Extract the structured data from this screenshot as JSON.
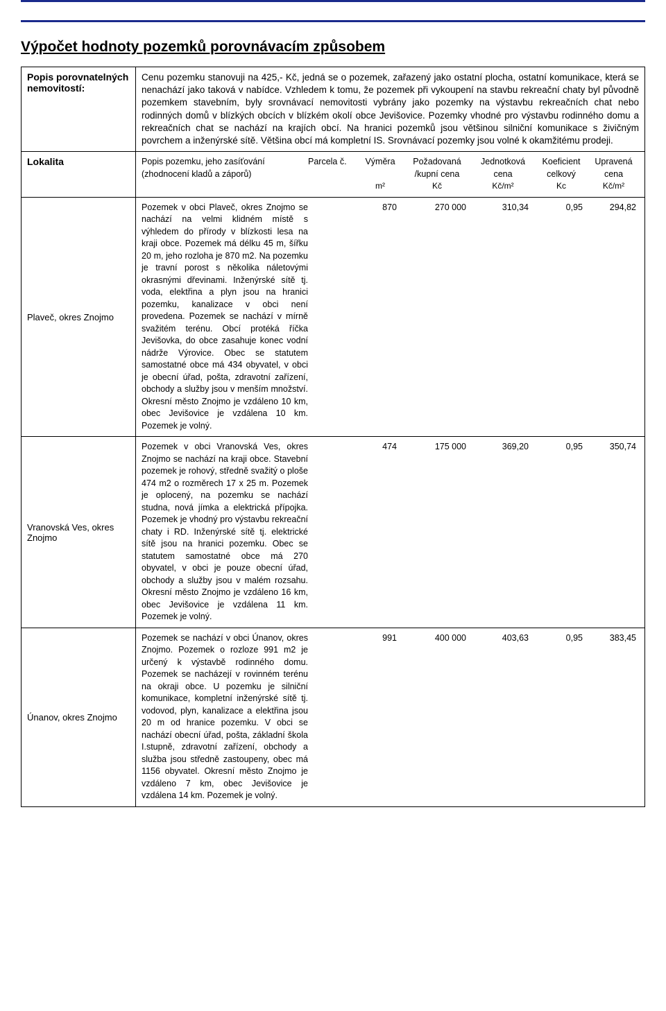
{
  "colors": {
    "border_navy": "#1a2a8c",
    "text": "#000000",
    "background": "#ffffff"
  },
  "page_title": "Výpočet hodnoty pozemků porovnávacím způsobem",
  "section1": {
    "label": "Popis porovnatelných nemovitostí:",
    "text": "Cenu pozemku stanovuji na 425,- Kč, jedná se o pozemek, zařazený jako ostatní plocha, ostatní komunikace, která se nenachází jako taková v nabídce. Vzhledem k tomu, že pozemek při vykoupení na stavbu rekreační chaty byl původně pozemkem stavebním, byly srovnávací nemovitosti vybrány jako pozemky na výstavbu rekreačních chat nebo rodinných domů v blízkých obcích v blízkém okolí obce Jevišovice. Pozemky  vhodné pro výstavbu rodinného domu a rekreačních chat se nachází na krajích obcí. Na hranici pozemků jsou většinou silniční komunikace s živičným povrchem a inženýrské sítě. Většina obcí má kompletní IS. Srovnávací pozemky jsou volné k okamžitému prodeji."
  },
  "section2": {
    "label": "Lokalita",
    "header": {
      "c1_l1": "Popis pozemku, jeho zasíťování",
      "c1_l2": "(zhodnocení  kladů a záporů)",
      "c2_l1": "Parcela č.",
      "c3_l1": "Výměra",
      "c3_l2": "m²",
      "c4_l1": "Požadovaná",
      "c4_l2": "/kupní cena",
      "c4_l3": "Kč",
      "c5_l1": "Jednotková",
      "c5_l2": "cena",
      "c5_l3": "Kč/m²",
      "c6_l1": "Koeficient",
      "c6_l2": "celkový",
      "c6_l3": "Kᴄ",
      "c7_l1": "Upravená",
      "c7_l2": "cena",
      "c7_l3": "Kč/m²"
    }
  },
  "rows": [
    {
      "locality": "Plaveč, okres Znojmo",
      "desc": "Pozemek v obci Plaveč, okres Znojmo se nachází na velmi klidném místě s výhledem do přírody v blízkosti lesa na kraji obce. Pozemek má délku 45 m, šířku 20 m, jeho rozloha je 870 m2. Na pozemku je travní porost s několika náletovými okrasnými dřevinami. Inženýrské sítě tj. voda, elektřina a plyn jsou na hranici pozemku, kanalizace v obci není provedena. Pozemek se nachází v mírně svažitém terénu. Obcí protéká říčka Jevišovka, do obce zasahuje konec vodní nádrže Výrovice. Obec se statutem samostatné obce má 434 obyvatel, v obci je obecní úřad, pošta, zdravotní zařízení, obchody a služby jsou v menším množství. Okresní město Znojmo je vzdáleno 10 km, obec Jevišovice je vzdálena 10 km. Pozemek je volný.",
      "parcel": "",
      "area": "870",
      "price": "270 000",
      "unit_price": "310,34",
      "coef": "0,95",
      "adj_price": "294,82"
    },
    {
      "locality": "Vranovská Ves, okres Znojmo",
      "desc": "Pozemek v obci Vranovská Ves, okres Znojmo se nachází na kraji obce. Stavební pozemek je rohový, středně svažitý o ploše 474 m2 o rozměrech 17 x 25 m. Pozemek je oplocený, na pozemku se nachází studna, nová jímka a elektrická přípojka. Pozemek je vhodný pro výstavbu rekreační chaty i RD. Inženýrské sítě tj. elektrické sítě jsou na hranici pozemku. Obec se statutem samostatné obce má 270 obyvatel, v obci je pouze obecní úřad, obchody a služby jsou v malém rozsahu. Okresní město Znojmo je vzdáleno 16 km, obec Jevišovice je vzdálena 11 km. Pozemek je volný.",
      "parcel": "",
      "area": "474",
      "price": "175 000",
      "unit_price": "369,20",
      "coef": "0,95",
      "adj_price": "350,74"
    },
    {
      "locality": "Únanov, okres Znojmo",
      "desc": "Pozemek se nachází v obci Únanov, okres Znojmo. Pozemek o rozloze 991 m2 je určený k výstavbě rodinného domu. Pozemek se nacházejí v rovinném terénu na okraji obce. U pozemku je silniční komunikace, kompletní inženýrské sítě tj. vodovod, plyn, kanalizace a elektřina jsou 20 m od hranice pozemku. V obci se nachází obecní úřad, pošta, základní škola I.stupně, zdravotní zařízení, obchody a služba jsou středně zastoupeny, obec má 1156 obyvatel. Okresní město Znojmo je vzdáleno 7 km, obec Jevišovice je vzdálena 14 km. Pozemek je volný.",
      "parcel": "",
      "area": "991",
      "price": "400 000",
      "unit_price": "403,63",
      "coef": "0,95",
      "adj_price": "383,45"
    }
  ]
}
